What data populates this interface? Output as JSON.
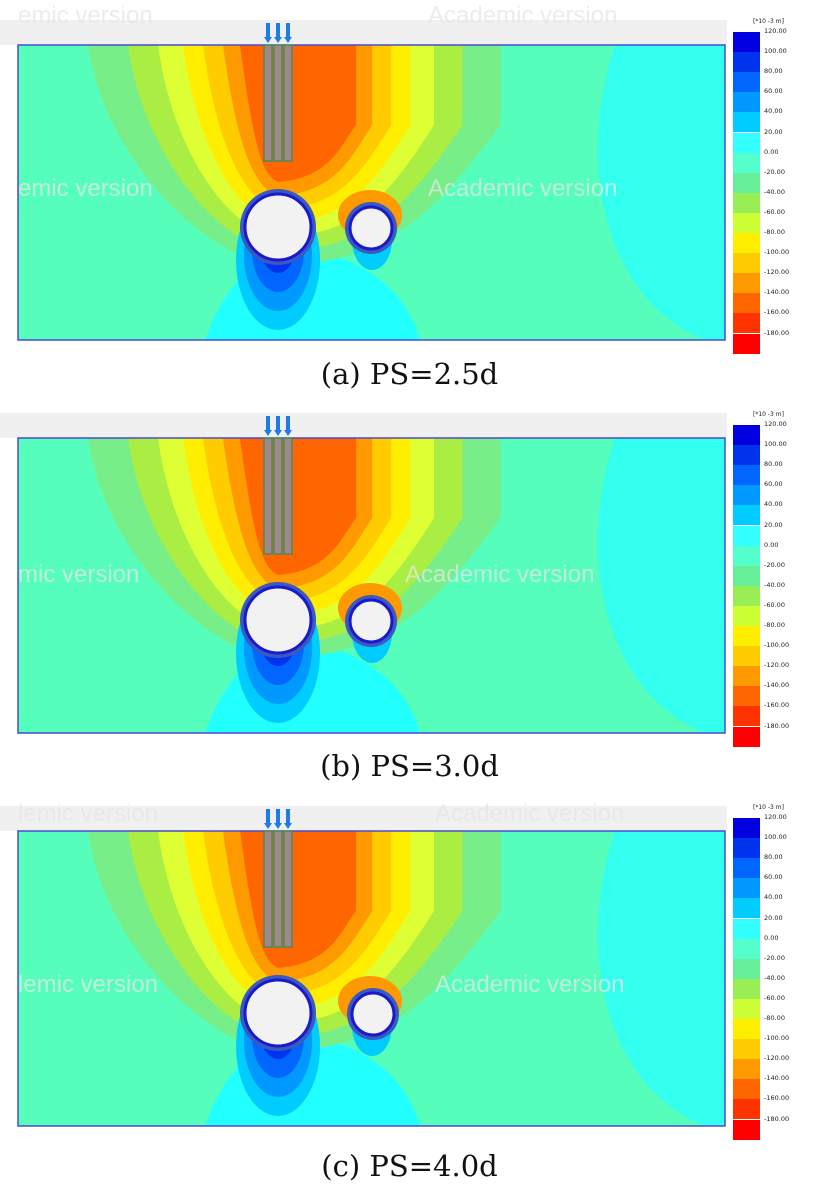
{
  "legend": {
    "unit": "[*10 -3 m]",
    "ticks": [
      "120.00",
      "100.00",
      "80.00",
      "60.00",
      "40.00",
      "20.00",
      "0.00",
      "-20.00",
      "-40.00",
      "-60.00",
      "-80.00",
      "-100.00",
      "-120.00",
      "-140.00",
      "-160.00",
      "-180.00"
    ],
    "colors": [
      "#0000e0",
      "#0033ee",
      "#0066ff",
      "#0099ff",
      "#00ccff",
      "#33ffff",
      "#55ffcc",
      "#66ee99",
      "#99ee55",
      "#ccff33",
      "#ffee00",
      "#ffcc00",
      "#ff9900",
      "#ff6600",
      "#ff3300",
      "#ff0000"
    ]
  },
  "watermark": "Academic version",
  "panels": [
    {
      "caption": "(a) PS=2.5d",
      "wm_left": "emic version",
      "wm_top": "emic version"
    },
    {
      "caption": "(b) PS=3.0d",
      "wm_left": "mic version",
      "wm_top": ""
    },
    {
      "caption": "(c) PS=4.0d",
      "wm_left": "lemic version",
      "wm_top": "lemic version"
    }
  ]
}
